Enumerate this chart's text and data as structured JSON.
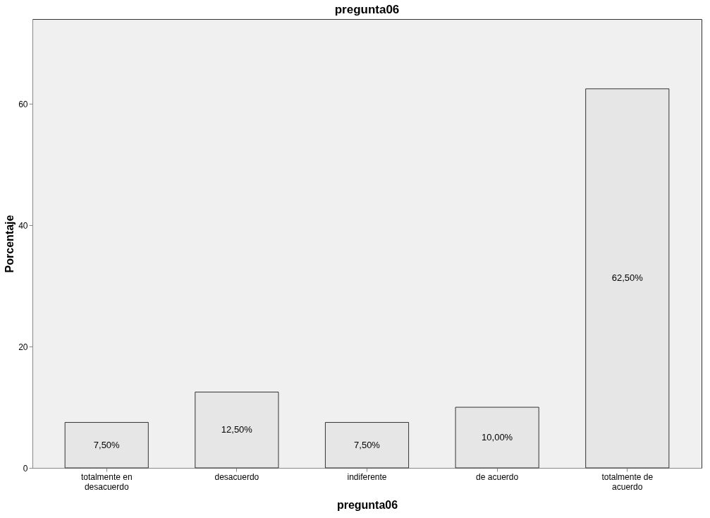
{
  "chart_data": {
    "type": "bar",
    "title": "pregunta06",
    "xlabel": "pregunta06",
    "ylabel": "Porcentaje",
    "categories": [
      "totalmente en desacuerdo",
      "desacuerdo",
      "indiferente",
      "de acuerdo",
      "totalmente de acuerdo"
    ],
    "values": [
      7.5,
      12.5,
      7.5,
      10,
      62.5
    ],
    "value_labels": [
      "7,50%",
      "12,50%",
      "7,50%",
      "10,00%",
      "62,50%"
    ],
    "color": "#e6e6e6",
    "ylim": [
      0,
      74
    ],
    "yticks": [
      0,
      20,
      40,
      60
    ],
    "grid": false
  }
}
